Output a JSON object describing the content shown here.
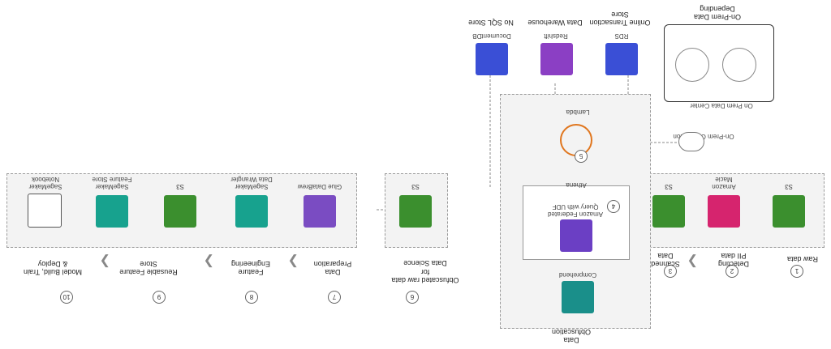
{
  "steps": [
    {
      "num": "1",
      "label": "Raw data"
    },
    {
      "num": "2",
      "label": "Detecting\nPII data"
    },
    {
      "num": "3",
      "label": "Scanned\nData"
    },
    {
      "num": "4",
      "label": "Data\nObfuscation"
    },
    {
      "num": "5",
      "label": ""
    },
    {
      "num": "6",
      "label": "Obfuscated raw data\nfor\nData Science"
    },
    {
      "num": "7",
      "label": "Data\nPreparation"
    },
    {
      "num": "8",
      "label": "Feature\nEngineering"
    },
    {
      "num": "9",
      "label": "Reusable Feature\nStore"
    },
    {
      "num": "10",
      "label": "Model Build, Train\n& Deploy"
    }
  ],
  "services": {
    "s3_raw": "S3",
    "macie": "Amazon\nMacie",
    "s3_scanned": "S3",
    "athena_udf": "Amazon Federated\nQuery with UDF",
    "athena": "Athena",
    "comprehend": "Comprehend",
    "lambda": "Lambda",
    "s3_ds": "S3",
    "data_wrangler": "SageMaker\nData Wrangler",
    "studio": "SageMaker\nData Wrangler",
    "s3_fs": "S3",
    "feature_store": "SageMaker\nFeature Store",
    "notebook": "SageMaker\nNotebook",
    "glue": "Glue DataBrew",
    "documentdb": "DocumentDB",
    "redshift": "Redshift",
    "rds": "RDS",
    "onprem_center": "On Prem Data Center",
    "on_prem_conn": "On-Prem Connection"
  },
  "stores": {
    "nosql": "No SQL Store",
    "warehouse": "Data Warehouse",
    "oltp": "Online Transaction\nStore",
    "onprem_stores": "On-Prem Data\nDepending"
  },
  "colors": {
    "s3": "#3b8f2e",
    "macie": "#d6246e",
    "athena": "#6b3fc4",
    "comprehend": "#1a8f8a",
    "lambda": "#e0761e",
    "sagemaker": "#17a28e",
    "glue": "#7a4cc2",
    "database": "#3a4fd6",
    "redshift": "#8b3fc4"
  }
}
